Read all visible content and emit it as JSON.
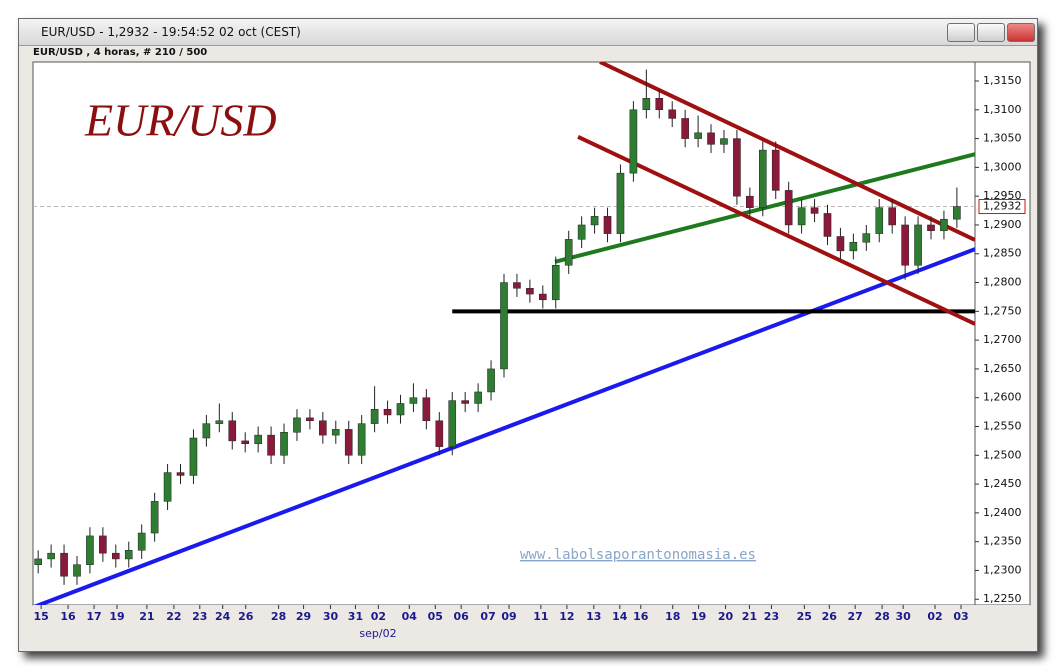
{
  "window_title": "EUR/USD - 1,2932 - 19:54:52  02 oct (CEST)",
  "chart_data": {
    "type": "candlestick",
    "title": "EUR/USD , 4 horas, # 210 / 500",
    "logo": "EUR/USD",
    "watermark": "www.labolsaporantonomasia.es",
    "month_label": "sep/02",
    "up_color": "#2e7d32",
    "down_color": "#8b1a3a",
    "ohlc": [
      [
        1.231,
        1.2335,
        1.2295,
        1.232
      ],
      [
        1.232,
        1.2345,
        1.2305,
        1.233
      ],
      [
        1.233,
        1.2345,
        1.2275,
        1.229
      ],
      [
        1.229,
        1.2325,
        1.2275,
        1.231
      ],
      [
        1.231,
        1.2375,
        1.2295,
        1.236
      ],
      [
        1.236,
        1.2375,
        1.2315,
        1.233
      ],
      [
        1.233,
        1.2345,
        1.2305,
        1.232
      ],
      [
        1.232,
        1.235,
        1.2305,
        1.2335
      ],
      [
        1.2335,
        1.238,
        1.232,
        1.2365
      ],
      [
        1.2365,
        1.2435,
        1.235,
        1.242
      ],
      [
        1.242,
        1.2485,
        1.2405,
        1.247
      ],
      [
        1.247,
        1.2485,
        1.245,
        1.2465
      ],
      [
        1.2465,
        1.2545,
        1.245,
        1.253
      ],
      [
        1.253,
        1.257,
        1.2515,
        1.2555
      ],
      [
        1.2555,
        1.259,
        1.254,
        1.256
      ],
      [
        1.256,
        1.2575,
        1.251,
        1.2525
      ],
      [
        1.2525,
        1.254,
        1.2505,
        1.252
      ],
      [
        1.252,
        1.255,
        1.2505,
        1.2535
      ],
      [
        1.2535,
        1.255,
        1.2485,
        1.25
      ],
      [
        1.25,
        1.2555,
        1.2485,
        1.254
      ],
      [
        1.254,
        1.258,
        1.2525,
        1.2565
      ],
      [
        1.2565,
        1.258,
        1.2545,
        1.256
      ],
      [
        1.256,
        1.2575,
        1.252,
        1.2535
      ],
      [
        1.2535,
        1.256,
        1.252,
        1.2545
      ],
      [
        1.2545,
        1.256,
        1.2485,
        1.25
      ],
      [
        1.25,
        1.257,
        1.2485,
        1.2555
      ],
      [
        1.2555,
        1.262,
        1.254,
        1.258
      ],
      [
        1.258,
        1.2595,
        1.2555,
        1.257
      ],
      [
        1.257,
        1.2605,
        1.2555,
        1.259
      ],
      [
        1.259,
        1.2625,
        1.2575,
        1.26
      ],
      [
        1.26,
        1.2615,
        1.2545,
        1.256
      ],
      [
        1.256,
        1.2575,
        1.25,
        1.2515
      ],
      [
        1.2515,
        1.261,
        1.25,
        1.2595
      ],
      [
        1.2595,
        1.261,
        1.2575,
        1.259
      ],
      [
        1.259,
        1.2625,
        1.2575,
        1.261
      ],
      [
        1.261,
        1.2665,
        1.2595,
        1.265
      ],
      [
        1.265,
        1.2815,
        1.2635,
        1.28
      ],
      [
        1.28,
        1.2815,
        1.2775,
        1.279
      ],
      [
        1.279,
        1.2805,
        1.2765,
        1.278
      ],
      [
        1.278,
        1.2795,
        1.2755,
        1.277
      ],
      [
        1.277,
        1.2845,
        1.2755,
        1.283
      ],
      [
        1.283,
        1.289,
        1.2815,
        1.2875
      ],
      [
        1.2875,
        1.2915,
        1.286,
        1.29
      ],
      [
        1.29,
        1.293,
        1.2885,
        1.2915
      ],
      [
        1.2915,
        1.293,
        1.287,
        1.2885
      ],
      [
        1.2885,
        1.3005,
        1.287,
        1.299
      ],
      [
        1.299,
        1.3115,
        1.2975,
        1.31
      ],
      [
        1.31,
        1.317,
        1.3085,
        1.312
      ],
      [
        1.312,
        1.3135,
        1.3085,
        1.31
      ],
      [
        1.31,
        1.3115,
        1.307,
        1.3085
      ],
      [
        1.3085,
        1.31,
        1.3035,
        1.305
      ],
      [
        1.305,
        1.309,
        1.3035,
        1.306
      ],
      [
        1.306,
        1.3075,
        1.3025,
        1.304
      ],
      [
        1.304,
        1.3065,
        1.3025,
        1.305
      ],
      [
        1.305,
        1.3065,
        1.2935,
        1.295
      ],
      [
        1.295,
        1.2965,
        1.2915,
        1.293
      ],
      [
        1.293,
        1.3045,
        1.2915,
        1.303
      ],
      [
        1.303,
        1.3045,
        1.2945,
        1.296
      ],
      [
        1.296,
        1.2975,
        1.2885,
        1.29
      ],
      [
        1.29,
        1.2945,
        1.2885,
        1.293
      ],
      [
        1.293,
        1.2945,
        1.2905,
        1.292
      ],
      [
        1.292,
        1.2935,
        1.2865,
        1.288
      ],
      [
        1.288,
        1.2895,
        1.284,
        1.2855
      ],
      [
        1.2855,
        1.2885,
        1.284,
        1.287
      ],
      [
        1.287,
        1.29,
        1.2855,
        1.2885
      ],
      [
        1.2885,
        1.2945,
        1.287,
        1.293
      ],
      [
        1.293,
        1.2945,
        1.2885,
        1.29
      ],
      [
        1.29,
        1.2915,
        1.2805,
        1.283
      ],
      [
        1.283,
        1.2915,
        1.2815,
        1.29
      ],
      [
        1.29,
        1.2915,
        1.2875,
        1.289
      ],
      [
        1.289,
        1.2925,
        1.2875,
        1.291
      ],
      [
        1.291,
        1.2965,
        1.2895,
        1.2932
      ]
    ],
    "xlim": [
      -0.4,
      72.4
    ],
    "xticks": [
      {
        "value": 0.23,
        "label": "15"
      },
      {
        "value": 2.31,
        "label": "16"
      },
      {
        "value": 4.32,
        "label": "17"
      },
      {
        "value": 6.09,
        "label": "19"
      },
      {
        "value": 8.4,
        "label": "21"
      },
      {
        "value": 10.49,
        "label": "22"
      },
      {
        "value": 12.49,
        "label": "23"
      },
      {
        "value": 14.26,
        "label": "24"
      },
      {
        "value": 16.04,
        "label": "26"
      },
      {
        "value": 18.58,
        "label": "28"
      },
      {
        "value": 20.51,
        "label": "29"
      },
      {
        "value": 22.59,
        "label": "30"
      },
      {
        "value": 24.52,
        "label": "31"
      },
      {
        "value": 26.29,
        "label": "02"
      },
      {
        "value": 28.68,
        "label": "04"
      },
      {
        "value": 30.69,
        "label": "05"
      },
      {
        "value": 32.69,
        "label": "06"
      },
      {
        "value": 34.77,
        "label": "07"
      },
      {
        "value": 36.39,
        "label": "09"
      },
      {
        "value": 38.85,
        "label": "11"
      },
      {
        "value": 40.86,
        "label": "12"
      },
      {
        "value": 42.94,
        "label": "13"
      },
      {
        "value": 44.95,
        "label": "14"
      },
      {
        "value": 46.57,
        "label": "16"
      },
      {
        "value": 49.04,
        "label": "18"
      },
      {
        "value": 51.04,
        "label": "19"
      },
      {
        "value": 53.12,
        "label": "20"
      },
      {
        "value": 54.97,
        "label": "21"
      },
      {
        "value": 56.67,
        "label": "23"
      },
      {
        "value": 59.21,
        "label": "25"
      },
      {
        "value": 61.14,
        "label": "26"
      },
      {
        "value": 63.14,
        "label": "27"
      },
      {
        "value": 65.22,
        "label": "28"
      },
      {
        "value": 66.85,
        "label": "30"
      },
      {
        "value": 69.31,
        "label": "02"
      },
      {
        "value": 71.32,
        "label": "03"
      }
    ],
    "ylim": [
      1.224,
      1.3183
    ],
    "yticks": [
      {
        "value": 1.225,
        "label": "1,2250"
      },
      {
        "value": 1.23,
        "label": "1,2300"
      },
      {
        "value": 1.235,
        "label": "1,2350"
      },
      {
        "value": 1.24,
        "label": "1,2400"
      },
      {
        "value": 1.245,
        "label": "1,2450"
      },
      {
        "value": 1.25,
        "label": "1,2500"
      },
      {
        "value": 1.255,
        "label": "1,2550"
      },
      {
        "value": 1.26,
        "label": "1,2600"
      },
      {
        "value": 1.265,
        "label": "1,2650"
      },
      {
        "value": 1.27,
        "label": "1,2700"
      },
      {
        "value": 1.275,
        "label": "1,2750"
      },
      {
        "value": 1.28,
        "label": "1,2800"
      },
      {
        "value": 1.285,
        "label": "1,2850"
      },
      {
        "value": 1.29,
        "label": "1,2900"
      },
      {
        "value": 1.295,
        "label": "1,2950"
      },
      {
        "value": 1.3,
        "label": "1,3000"
      },
      {
        "value": 1.305,
        "label": "1,3050"
      },
      {
        "value": 1.31,
        "label": "1,3100"
      },
      {
        "value": 1.315,
        "label": "1,3150"
      }
    ],
    "last_price": {
      "value": 1.2932,
      "label": "1,2932"
    },
    "trend_lines": [
      {
        "color": "#1a1aee",
        "x": [
          -0.4,
          72.4
        ],
        "y": [
          1.2236,
          1.2858
        ]
      },
      {
        "color": "#000000",
        "x": [
          32.0,
          72.4
        ],
        "y": [
          1.275,
          1.275
        ]
      },
      {
        "color": "#1f7a1f",
        "x": [
          39.94,
          72.4
        ],
        "y": [
          1.2836,
          1.3023
        ]
      },
      {
        "color": "#a01010",
        "x": [
          43.42,
          72.4
        ],
        "y": [
          1.3183,
          1.2874
        ]
      },
      {
        "color": "#a01010",
        "x": [
          41.72,
          72.4
        ],
        "y": [
          1.3053,
          1.2728
        ]
      }
    ]
  }
}
